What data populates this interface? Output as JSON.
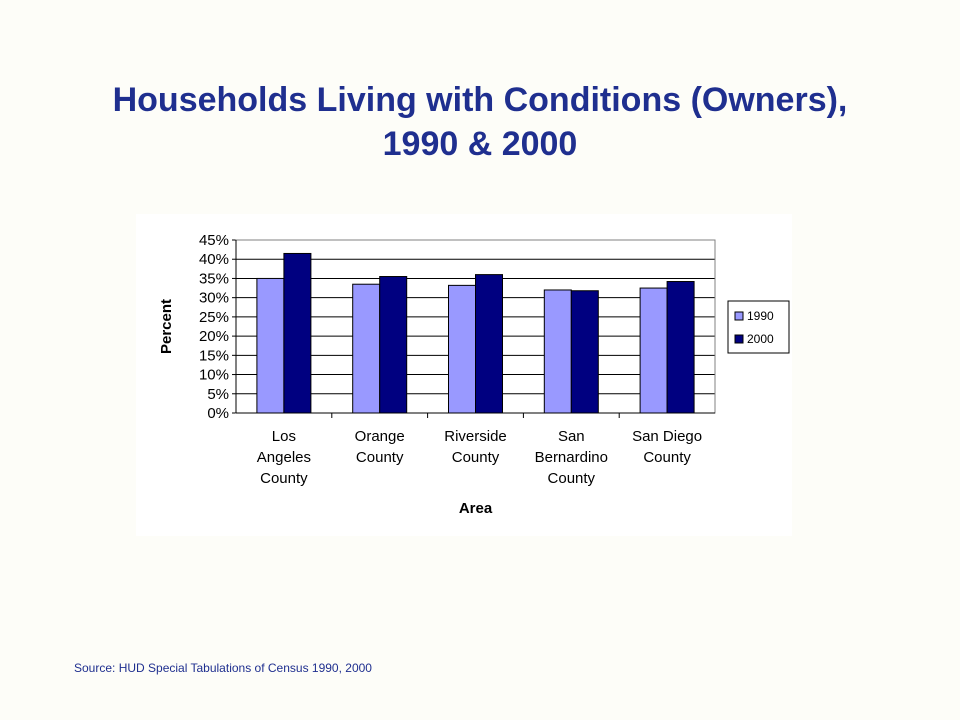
{
  "slide": {
    "title_line1": "Households Living with Conditions (Owners),",
    "title_line2": "1990 & 2000",
    "source": "Source: HUD Special Tabulations of Census 1990, 2000"
  },
  "chart_data": {
    "type": "bar",
    "title": "",
    "xlabel": "Area",
    "ylabel": "Percent",
    "ylim": [
      0,
      45
    ],
    "yticks": [
      0,
      5,
      10,
      15,
      20,
      25,
      30,
      35,
      40,
      45
    ],
    "ytick_labels": [
      "0%",
      "5%",
      "10%",
      "15%",
      "20%",
      "25%",
      "30%",
      "35%",
      "40%",
      "45%"
    ],
    "categories": [
      [
        "Los",
        "Angeles",
        "County"
      ],
      [
        "Orange",
        "County"
      ],
      [
        "Riverside",
        "County"
      ],
      [
        "San",
        "Bernardino",
        "County"
      ],
      [
        "San Diego",
        "County"
      ]
    ],
    "series": [
      {
        "name": "1990",
        "color": "#9999ff",
        "values": [
          35,
          33.5,
          33.2,
          32,
          32.5
        ]
      },
      {
        "name": "2000",
        "color": "#000080",
        "values": [
          41.5,
          35.5,
          36,
          31.8,
          34.2
        ]
      }
    ],
    "grid": true,
    "legend_position": "right"
  }
}
